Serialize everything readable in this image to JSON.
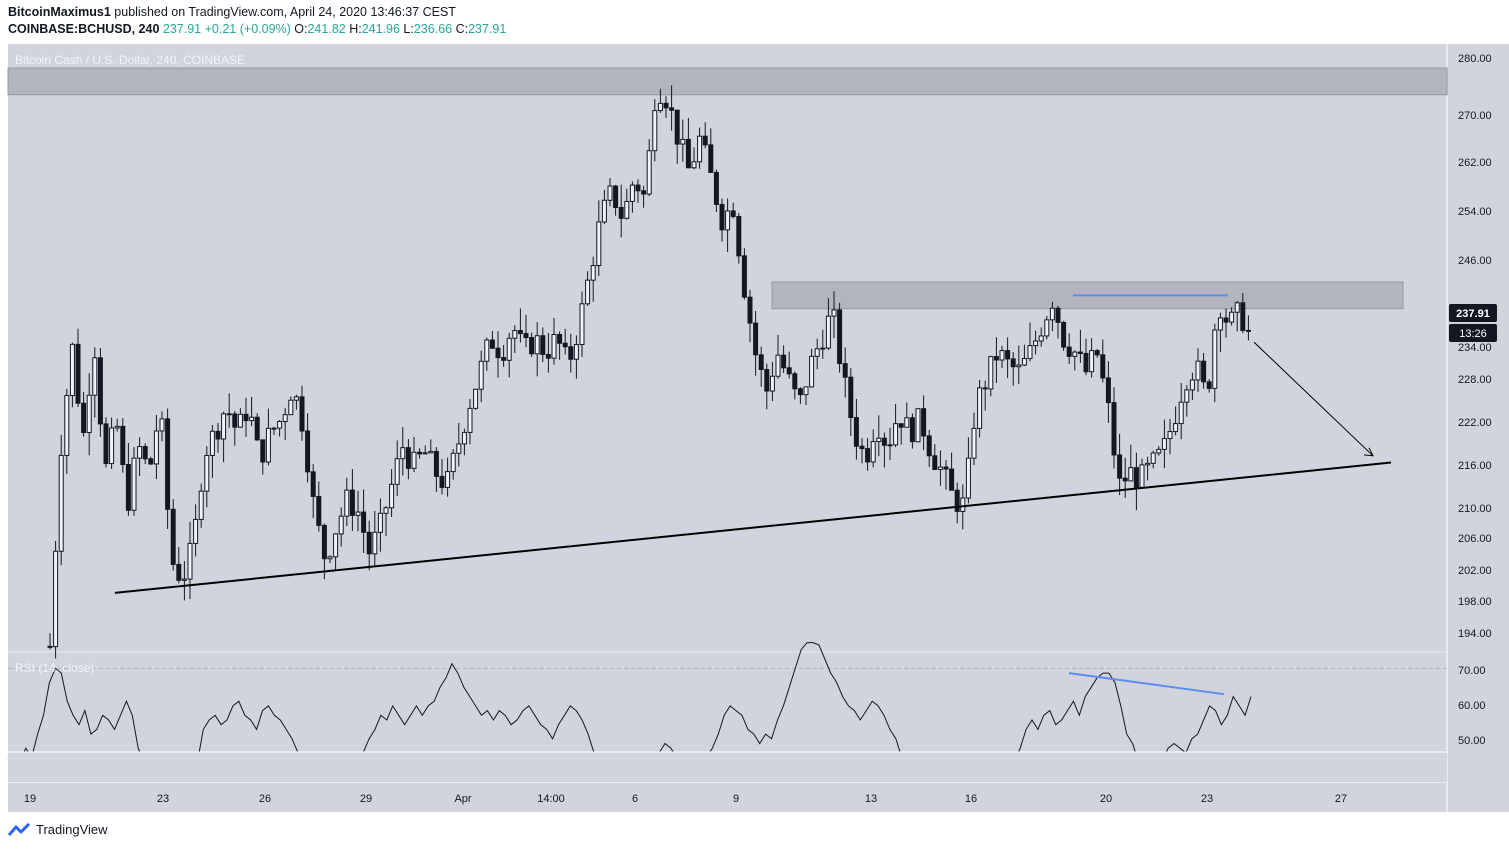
{
  "header": {
    "author": "BitcoinMaximus1",
    "published_text": " published on TradingView.com, April 24, 2020 13:46:37 CEST",
    "symbol_interval": "COINBASE:BCHUSD, 240",
    "last": "237.91",
    "change": "+0.21 (+0.09%)",
    "o_label": "O:",
    "o_value": "241.82",
    "h_label": "H:",
    "h_value": "241.96",
    "l_label": "L:",
    "l_value": "236.66",
    "c_label": "C:",
    "c_value": "237.91"
  },
  "footer": {
    "brand": "TradingView"
  },
  "colors": {
    "pane_bg": "#d1d4dc",
    "zone": "#b2b5be",
    "candle": "#131722",
    "trendline": "#000000",
    "divergence": "#5b8def",
    "rsi_line": "#131722",
    "price_tag_bg": "#131722"
  },
  "chart_data": [
    {
      "type": "candlestick",
      "title": "Bitcoin Cash / U.S. Dollar, 240, COINBASE",
      "ylim": [
        190,
        282
      ],
      "y_ticks": [
        "280.00",
        "270.00",
        "262.00",
        "254.00",
        "246.00",
        "238.00",
        "234.00",
        "228.00",
        "222.00",
        "216.00",
        "210.00",
        "206.00",
        "202.00",
        "198.00",
        "194.00"
      ],
      "x_ticks": [
        "19",
        "23",
        "26",
        "29",
        "Apr",
        "14:00",
        "6",
        "9",
        "13",
        "16",
        "20",
        "23",
        "27"
      ],
      "last_price": "237.91",
      "countdown": "13:26",
      "resistance_zones": [
        {
          "from_date": "Mar 19",
          "to_date": "Apr 30",
          "low": 274.5,
          "high": 278.5
        },
        {
          "from_date": "Apr 10",
          "to_date": "Apr 28",
          "low": 242.5,
          "high": 246.5
        }
      ],
      "ascending_support": {
        "start": {
          "date": "Mar 21",
          "value": 200
        },
        "end": {
          "date": "Apr 28",
          "value": 219.5
        }
      },
      "projection_arrow": {
        "start": {
          "date": "Apr 24",
          "value": 237.5
        },
        "end": {
          "date": "Apr 28",
          "value": 220.5
        }
      },
      "price_divergence_line": {
        "start_value": 244.5,
        "end_value": 244.5
      },
      "close_path": [
        [
          "Mar 19",
          192
        ],
        [
          "Mar 19",
          222
        ],
        [
          "Mar 20",
          237
        ],
        [
          "Mar 20",
          223
        ],
        [
          "Mar 20",
          238
        ],
        [
          "Mar 21",
          218
        ],
        [
          "Mar 21",
          226
        ],
        [
          "Mar 22",
          213
        ],
        [
          "Mar 22",
          222
        ],
        [
          "Mar 22",
          218
        ],
        [
          "Mar 23",
          228
        ],
        [
          "Mar 23",
          205
        ],
        [
          "Mar 23",
          202
        ],
        [
          "Mar 23",
          207
        ],
        [
          "Mar 24",
          221
        ],
        [
          "Mar 24",
          224
        ],
        [
          "Mar 25",
          228
        ],
        [
          "Mar 25",
          224
        ],
        [
          "Mar 25",
          228
        ],
        [
          "Mar 26",
          220
        ],
        [
          "Mar 26",
          224
        ],
        [
          "Mar 27",
          226
        ],
        [
          "Mar 27",
          231
        ],
        [
          "Mar 27",
          225
        ],
        [
          "Mar 28",
          212
        ],
        [
          "Mar 28",
          205
        ],
        [
          "Mar 28",
          210
        ],
        [
          "Mar 29",
          214
        ],
        [
          "Mar 29",
          212
        ],
        [
          "Mar 30",
          206
        ],
        [
          "Mar 30",
          210
        ],
        [
          "Mar 30",
          216
        ],
        [
          "Mar 31",
          222
        ],
        [
          "Mar 31",
          219
        ],
        [
          "Apr 1",
          221
        ],
        [
          "Apr 1",
          218
        ],
        [
          "Apr 1",
          216
        ],
        [
          "Apr 1",
          222
        ],
        [
          "Apr 2",
          228
        ],
        [
          "Apr 2",
          233
        ],
        [
          "Apr 2",
          238
        ],
        [
          "Apr 3",
          236
        ],
        [
          "Apr 3",
          240
        ],
        [
          "Apr 3",
          236
        ],
        [
          "Apr 4",
          238
        ],
        [
          "Apr 4",
          236
        ],
        [
          "Apr 5",
          238
        ],
        [
          "Apr 5",
          234
        ],
        [
          "Apr 6",
          240
        ],
        [
          "Apr 6",
          248
        ],
        [
          "Apr 6",
          256
        ],
        [
          "Apr 7",
          260
        ],
        [
          "Apr 7",
          256
        ],
        [
          "Apr 7",
          262
        ],
        [
          "Apr 7",
          259
        ],
        [
          "Apr 8",
          276
        ],
        [
          "Apr 8",
          274
        ],
        [
          "Apr 8",
          268
        ],
        [
          "Apr 8",
          263
        ],
        [
          "Apr 9",
          268
        ],
        [
          "Apr 9",
          262
        ],
        [
          "Apr 9",
          256
        ],
        [
          "Apr 10",
          258
        ],
        [
          "Apr 10",
          246
        ],
        [
          "Apr 10",
          236
        ],
        [
          "Apr 10",
          230
        ],
        [
          "Apr 11",
          236
        ],
        [
          "Apr 11",
          232
        ],
        [
          "Apr 11",
          228
        ],
        [
          "Apr 12",
          234
        ],
        [
          "Apr 12",
          238
        ],
        [
          "Apr 12",
          242
        ],
        [
          "Apr 13",
          232
        ],
        [
          "Apr 13",
          224
        ],
        [
          "Apr 13",
          220
        ],
        [
          "Apr 14",
          226
        ],
        [
          "Apr 14",
          222
        ],
        [
          "Apr 14",
          227
        ],
        [
          "Apr 15",
          224
        ],
        [
          "Apr 15",
          226
        ],
        [
          "Apr 15",
          221
        ],
        [
          "Apr 16",
          218
        ],
        [
          "Apr 16",
          214
        ],
        [
          "Apr 16",
          213
        ],
        [
          "Apr 16",
          228
        ],
        [
          "Apr 17",
          232
        ],
        [
          "Apr 17",
          236
        ],
        [
          "Apr 17",
          234
        ],
        [
          "Apr 18",
          233
        ],
        [
          "Apr 18",
          236
        ],
        [
          "Apr 18",
          240
        ],
        [
          "Apr 19",
          244
        ],
        [
          "Apr 19",
          238
        ],
        [
          "Apr 19",
          236
        ],
        [
          "Apr 19",
          233
        ],
        [
          "Apr 20",
          236
        ],
        [
          "Apr 20",
          228
        ],
        [
          "Apr 20",
          216
        ],
        [
          "Apr 21",
          218
        ],
        [
          "Apr 21",
          217
        ],
        [
          "Apr 21",
          219
        ],
        [
          "Apr 22",
          221
        ],
        [
          "Apr 22",
          226
        ],
        [
          "Apr 22",
          232
        ],
        [
          "Apr 23",
          234
        ],
        [
          "Apr 23",
          229
        ],
        [
          "Apr 23",
          244
        ],
        [
          "Apr 23",
          240
        ],
        [
          "Apr 24",
          242
        ],
        [
          "Apr 24",
          238
        ]
      ]
    },
    {
      "type": "line",
      "title": "RSI (14, close)",
      "visible_range": [
        46,
        73
      ],
      "y_ticks": [
        "70.00",
        "60.00",
        "50.00"
      ],
      "levels": [
        70,
        50
      ],
      "divergence_line": {
        "start_value": 69,
        "end_value": 64.5
      },
      "values": [
        51,
        49,
        50,
        53,
        51,
        56,
        60,
        67,
        70,
        69,
        63,
        60,
        58,
        61,
        56,
        57,
        60,
        59,
        57,
        60,
        63,
        60,
        53,
        50,
        52,
        46,
        47,
        50,
        48,
        46,
        47,
        49,
        50,
        57,
        59,
        60,
        58,
        59,
        62,
        63,
        60,
        59,
        57,
        61,
        62,
        60,
        59,
        57,
        55,
        52,
        50,
        47,
        47,
        49,
        50,
        48,
        46,
        46,
        45,
        49,
        52,
        55,
        57,
        60,
        59,
        62,
        60,
        58,
        60,
        62,
        60,
        62,
        63,
        66,
        68,
        71,
        69,
        66,
        64,
        62,
        60,
        61,
        59,
        61,
        60,
        58,
        59,
        61,
        62,
        60,
        58,
        57,
        55,
        58,
        60,
        62,
        61,
        59,
        56,
        52,
        50,
        48,
        51,
        49,
        50,
        48,
        46,
        44,
        45,
        47,
        52,
        54,
        53,
        51,
        49,
        46,
        47,
        49,
        51,
        53,
        56,
        60,
        62,
        61,
        60,
        57,
        56,
        54,
        56,
        55,
        59,
        62,
        66,
        70,
        74,
        76,
        77,
        75,
        72,
        69,
        67,
        64,
        62,
        61,
        59,
        61,
        63,
        62,
        60,
        57,
        55,
        51,
        49,
        50,
        48,
        47,
        46,
        48,
        49,
        48,
        46,
        45,
        47,
        50,
        52,
        50,
        48,
        46,
        45,
        47,
        50,
        53,
        57,
        59,
        57,
        60,
        61,
        58,
        59,
        61,
        63,
        60,
        64,
        66,
        68,
        69,
        69,
        67,
        62,
        56,
        54,
        50,
        52,
        49,
        47,
        50,
        53,
        54,
        53,
        52,
        55,
        56,
        59,
        62,
        61,
        58,
        60,
        64,
        62,
        60,
        64
      ]
    }
  ]
}
